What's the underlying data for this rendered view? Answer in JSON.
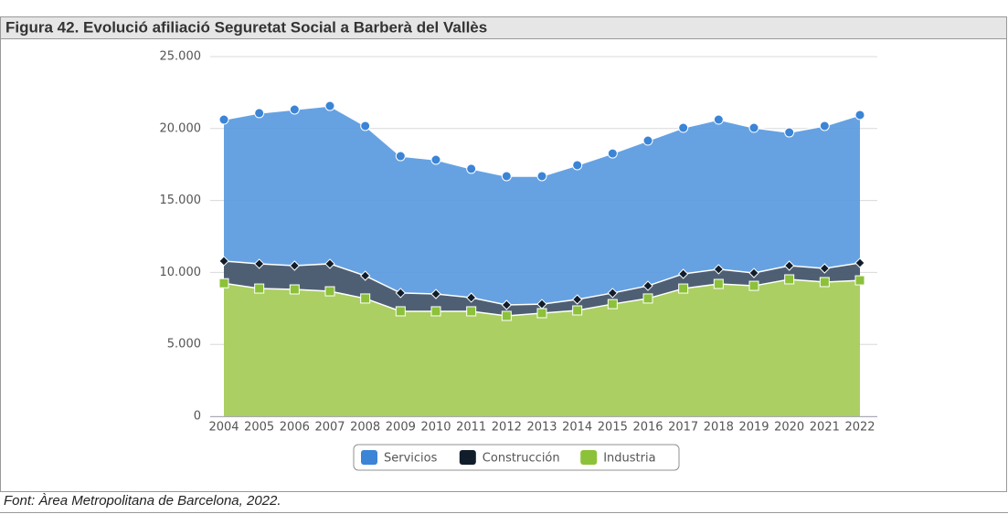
{
  "chart_data": {
    "type": "stacked_area",
    "title": "Figura 42. Evolució afiliació Seguretat Social a Barberà del Vallès",
    "source": "Font: Àrea Metropolitana de Barcelona, 2022.",
    "categories": [
      "2004",
      "2005",
      "2006",
      "2007",
      "2008",
      "2009",
      "2010",
      "2011",
      "2012",
      "2013",
      "2014",
      "2015",
      "2016",
      "2017",
      "2018",
      "2019",
      "2020",
      "2021",
      "2022"
    ],
    "series": [
      {
        "name": "Servicios",
        "color": "#5e9de0",
        "marker_color": "#3b84d6",
        "marker": "circle",
        "values": [
          9830,
          10470,
          10850,
          10970,
          10410,
          9510,
          9330,
          8950,
          8950,
          8890,
          9330,
          9700,
          10090,
          10150,
          10400,
          10090,
          9260,
          9900,
          10280
        ]
      },
      {
        "name": "Construcción",
        "color": "#46566b",
        "marker_color": "#111d2b",
        "marker": "diamond",
        "values": [
          1540,
          1720,
          1650,
          1910,
          1580,
          1270,
          1200,
          950,
          760,
          630,
          760,
          770,
          880,
          1020,
          1020,
          890,
          950,
          950,
          1210
        ]
      },
      {
        "name": "Industria",
        "color": "#a6cc5b",
        "marker_color": "#8cc13a",
        "marker": "square",
        "values": [
          9250,
          8880,
          8820,
          8690,
          8190,
          7300,
          7300,
          7300,
          6980,
          7170,
          7360,
          7800,
          8190,
          8880,
          9200,
          9070,
          9520,
          9330,
          9450
        ]
      }
    ],
    "ylim": [
      0,
      25000
    ],
    "yticks": [
      0,
      {
        "value": 5000,
        "label": "5.000"
      },
      {
        "value": 10000,
        "label": "10.000"
      },
      {
        "value": 15000,
        "label": "15.000"
      },
      {
        "value": 20000,
        "label": "20.000"
      },
      {
        "value": 25000,
        "label": "25.000"
      }
    ],
    "grid": true,
    "legend": "bottom"
  }
}
